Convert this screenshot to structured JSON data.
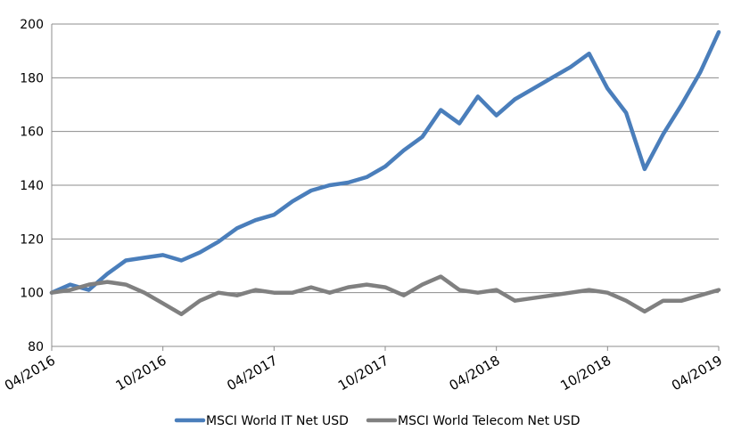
{
  "chart_data": {
    "type": "line",
    "title": "",
    "xlabel": "",
    "ylabel": "",
    "ylim": [
      80,
      200
    ],
    "yticks": [
      80,
      100,
      120,
      140,
      160,
      180,
      200
    ],
    "xlim": [
      "2016-04",
      "2019-04"
    ],
    "xtick_labels": [
      "04/2016",
      "10/2016",
      "04/2017",
      "10/2017",
      "04/2018",
      "10/2018",
      "04/2019"
    ],
    "grid": "horizontal",
    "legend_position": "bottom",
    "series": [
      {
        "name": "MSCI World IT Net USD",
        "color": "#4a7ebb",
        "points": [
          [
            "2016-04",
            100
          ],
          [
            "2016-05",
            103
          ],
          [
            "2016-06",
            101
          ],
          [
            "2016-07",
            107
          ],
          [
            "2016-08",
            112
          ],
          [
            "2016-09",
            113
          ],
          [
            "2016-10",
            114
          ],
          [
            "2016-11",
            112
          ],
          [
            "2016-12",
            115
          ],
          [
            "2017-01",
            119
          ],
          [
            "2017-02",
            124
          ],
          [
            "2017-03",
            127
          ],
          [
            "2017-04",
            129
          ],
          [
            "2017-05",
            134
          ],
          [
            "2017-06",
            138
          ],
          [
            "2017-07",
            140
          ],
          [
            "2017-08",
            141
          ],
          [
            "2017-09",
            143
          ],
          [
            "2017-10",
            147
          ],
          [
            "2017-11",
            153
          ],
          [
            "2017-12",
            158
          ],
          [
            "2018-01",
            168
          ],
          [
            "2018-02",
            163
          ],
          [
            "2018-03",
            173
          ],
          [
            "2018-04",
            166
          ],
          [
            "2018-05",
            172
          ],
          [
            "2018-06",
            176
          ],
          [
            "2018-07",
            180
          ],
          [
            "2018-08",
            184
          ],
          [
            "2018-09",
            189
          ],
          [
            "2018-10",
            176
          ],
          [
            "2018-11",
            167
          ],
          [
            "2018-12",
            146
          ],
          [
            "2019-01",
            159
          ],
          [
            "2019-02",
            170
          ],
          [
            "2019-03",
            182
          ],
          [
            "2019-04",
            197
          ]
        ]
      },
      {
        "name": "MSCI World Telecom Net USD",
        "color": "#808080",
        "points": [
          [
            "2016-04",
            100
          ],
          [
            "2016-05",
            101
          ],
          [
            "2016-06",
            103
          ],
          [
            "2016-07",
            104
          ],
          [
            "2016-08",
            103
          ],
          [
            "2016-09",
            100
          ],
          [
            "2016-10",
            96
          ],
          [
            "2016-11",
            92
          ],
          [
            "2016-12",
            97
          ],
          [
            "2017-01",
            100
          ],
          [
            "2017-02",
            99
          ],
          [
            "2017-03",
            101
          ],
          [
            "2017-04",
            100
          ],
          [
            "2017-05",
            100
          ],
          [
            "2017-06",
            102
          ],
          [
            "2017-07",
            100
          ],
          [
            "2017-08",
            102
          ],
          [
            "2017-09",
            103
          ],
          [
            "2017-10",
            102
          ],
          [
            "2017-11",
            99
          ],
          [
            "2017-12",
            103
          ],
          [
            "2018-01",
            106
          ],
          [
            "2018-02",
            101
          ],
          [
            "2018-03",
            100
          ],
          [
            "2018-04",
            101
          ],
          [
            "2018-05",
            97
          ],
          [
            "2018-06",
            98
          ],
          [
            "2018-07",
            99
          ],
          [
            "2018-08",
            100
          ],
          [
            "2018-09",
            101
          ],
          [
            "2018-10",
            100
          ],
          [
            "2018-11",
            97
          ],
          [
            "2018-12",
            93
          ],
          [
            "2019-01",
            97
          ],
          [
            "2019-02",
            97
          ],
          [
            "2019-03",
            99
          ],
          [
            "2019-04",
            101
          ]
        ]
      }
    ]
  }
}
